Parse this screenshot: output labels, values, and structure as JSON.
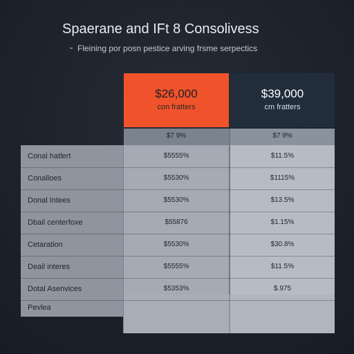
{
  "header": {
    "title": "Spaerane and IFt 8 Consolivess",
    "subtitle_mark": "⁃",
    "subtitle": "Fleining por posn pestice arving frsme serpectics"
  },
  "plans": [
    {
      "price": "$26,000",
      "subtitle": "con fratters",
      "highlighted": true
    },
    {
      "price": "$39,000",
      "subtitle": "cm fratters",
      "highlighted": false
    }
  ],
  "table": {
    "header": {
      "a": "$7 9%",
      "b": "$7 9%"
    },
    "rows": [
      {
        "label": "Conal hatlert",
        "a": "$5555%",
        "b": "$11.5%"
      },
      {
        "label": "Conalloes",
        "a": "$5530%",
        "b": "$1115%"
      },
      {
        "label": "Donal Intees",
        "a": "$5530%",
        "b": "$13.5%"
      },
      {
        "label": "Dbail centerfoxe",
        "a": "$55876",
        "b": "$1.15%"
      },
      {
        "label": "Cetaration",
        "a": "$5530%",
        "b": "$30.8%"
      },
      {
        "label": "Deail interes",
        "a": "$5555%",
        "b": "$11.5%"
      },
      {
        "label": "Dotal Asenvices",
        "a": "$5353%",
        "b": "$.975"
      },
      {
        "label": "Pevlea",
        "a": "",
        "b": ""
      }
    ]
  },
  "colors": {
    "accent": "#f0532b",
    "dark_plan": "#222d3c",
    "background": "#1d222b"
  }
}
